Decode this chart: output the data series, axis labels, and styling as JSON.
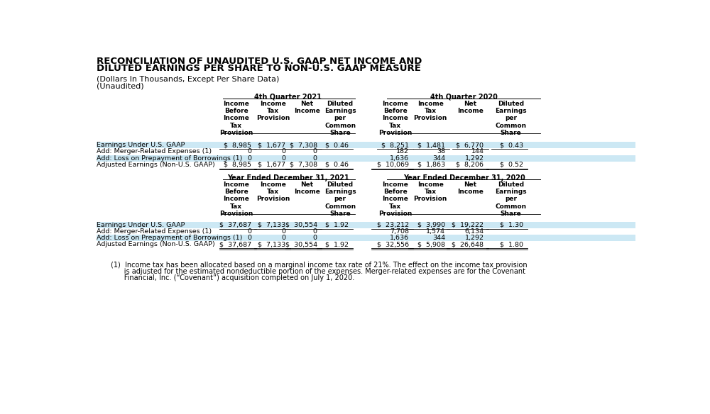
{
  "title_line1": "RECONCILIATION OF UNAUDITED U.S. GAAP NET INCOME AND",
  "title_line2": "DILUTED EARNINGS PER SHARE TO NON-U.S. GAAP MEASURE",
  "subtitle1": "(Dollars In Thousands, Except Per Share Data)",
  "subtitle2": "(Unaudited)",
  "bg_color": "#ffffff",
  "highlight_color": "#cce8f4",
  "section1_header": "4th Quarter 2021",
  "section2_header": "4th Quarter 2020",
  "section3_header": "Year Ended December 31, 2021",
  "section4_header": "Year Ended December 31, 2020",
  "col_headers": [
    "Income\nBefore\nIncome\nTax\nProvision",
    "Income\nTax\nProvision",
    "Net\nIncome",
    "Diluted\nEarnings\nper\nCommon\nShare",
    "Income\nBefore\nIncome\nTax\nProvision",
    "Income\nTax\nProvision",
    "Net\nIncome",
    "Diluted\nEarnings\nper\nCommon\nShare"
  ],
  "row_labels": [
    "Earnings Under U.S. GAAP",
    "Add: Merger-Related Expenses (1)",
    "Add: Loss on Prepayment of Borrowings (1)",
    "Adjusted Earnings (Non-U.S. GAAP)"
  ],
  "table1_data": [
    [
      "$  8,985",
      "$  1,677",
      "$  7,308",
      "$  0.46",
      "$  8,251",
      "$  1,481",
      "$  6,770",
      "$  0.43"
    ],
    [
      "0",
      "0",
      "0",
      "",
      "182",
      "38",
      "144",
      ""
    ],
    [
      "0",
      "0",
      "0",
      "",
      "1,636",
      "344",
      "1,292",
      ""
    ],
    [
      "$  8,985",
      "$  1,677",
      "$  7,308",
      "$  0.46",
      "$  10,069",
      "$  1,863",
      "$  8,206",
      "$  0.52"
    ]
  ],
  "table2_data": [
    [
      "$  37,687",
      "$  7,133",
      "$  30,554",
      "$  1.92",
      "$  23,212",
      "$  3,990",
      "$  19,222",
      "$  1.30"
    ],
    [
      "0",
      "0",
      "0",
      "",
      "7,708",
      "1,574",
      "6,134",
      ""
    ],
    [
      "0",
      "0",
      "0",
      "",
      "1,636",
      "344",
      "1,292",
      ""
    ],
    [
      "$  37,687",
      "$  7,133",
      "$  30,554",
      "$  1.92",
      "$  32,556",
      "$  5,908",
      "$  26,648",
      "$  1.80"
    ]
  ],
  "highlight_rows": [
    0,
    2
  ],
  "footnote_line1": "(1)  Income tax has been allocated based on a marginal income tax rate of 21%. The effect on the income tax provision",
  "footnote_line2": "      is adjusted for the estimated nondeductible portion of the expenses. Merger-related expenses are for the Covenant",
  "footnote_line3": "      Financial, Inc. (“Covenant”) acquisition completed on July 1, 2020.",
  "title_fontsize": 9.5,
  "subtitle_fontsize": 8.0,
  "header_fontsize": 7.0,
  "col_header_fontsize": 6.5,
  "data_fontsize": 6.8,
  "footnote_fontsize": 7.0
}
